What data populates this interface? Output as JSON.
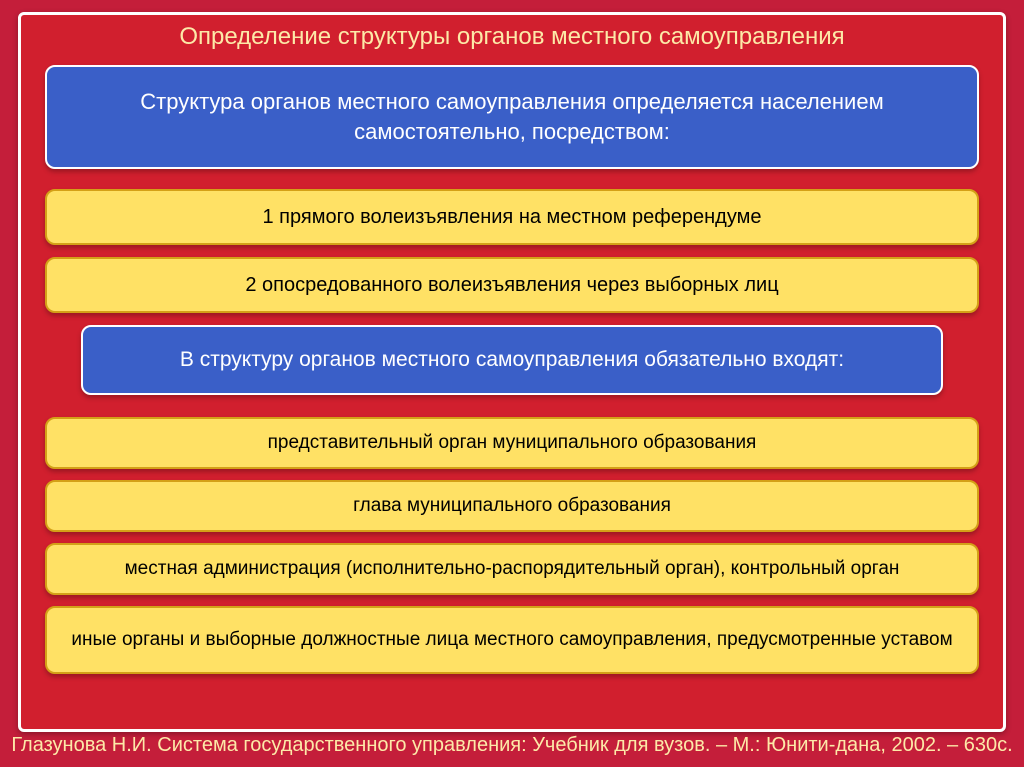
{
  "colors": {
    "slide_bg": "#c41e3a",
    "frame_bg": "#d11f2e",
    "frame_border": "#ffffff",
    "title_color": "#fde9a8",
    "blue_box_bg": "#3a5fc8",
    "blue_box_border": "#ffffff",
    "blue_box_text": "#ffffff",
    "yellow_box_bg": "#ffe165",
    "yellow_box_border": "#d4a017",
    "yellow_box_text": "#000000",
    "footer_color": "#fde9a8"
  },
  "typography": {
    "title_fontsize": 24,
    "blue1_fontsize": 22,
    "blue2_fontsize": 21,
    "yellow_fontsize": 20,
    "yellow2_fontsize": 19,
    "footer_fontsize": 20
  },
  "title": "Определение структуры органов местного самоуправления",
  "blue_box_1": "Структура органов местного самоуправления определяется населением самостоятельно, посредством:",
  "yellow_group_1": [
    "1 прямого волеизъявления на местном референдуме",
    "2 опосредованного волеизъявления через выборных лиц"
  ],
  "blue_box_2": "В структуру органов местного самоуправления обязательно входят:",
  "yellow_group_2": [
    "представительный орган муниципального образования",
    "глава муниципального образования",
    "местная администрация (исполнительно-распорядительный орган), контрольный орган",
    "иные органы и выборные должностные лица местного самоуправления, предусмотренные уставом"
  ],
  "footer": "Глазунова Н.И. Система государственного управления: Учебник для вузов. – М.: Юнити-дана, 2002. – 630с."
}
